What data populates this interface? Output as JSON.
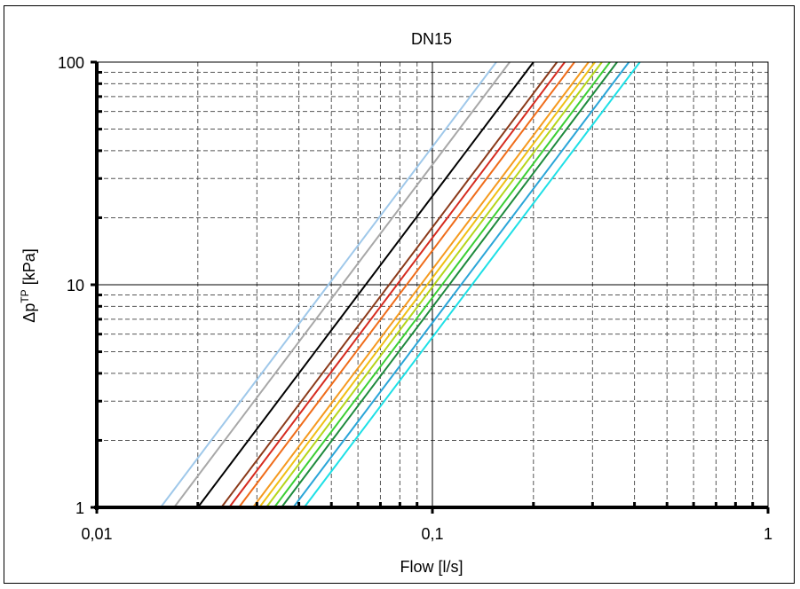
{
  "chart_data": {
    "type": "line",
    "title": "DN15",
    "xlabel": "Flow [l/s]",
    "ylabel_main": "Δp",
    "ylabel_sup": "TP",
    "ylabel_unit": " [kPa]",
    "x_scale": "log",
    "y_scale": "log",
    "xlim": [
      0.01,
      1
    ],
    "ylim": [
      1,
      100
    ],
    "x_ticks": [
      {
        "value": 0.01,
        "label": "0,01"
      },
      {
        "value": 0.1,
        "label": "0,1"
      },
      {
        "value": 1,
        "label": "1"
      }
    ],
    "y_ticks": [
      {
        "value": 1,
        "label": "1"
      },
      {
        "value": 10,
        "label": "10"
      },
      {
        "value": 100,
        "label": "100"
      }
    ],
    "grid": true,
    "legend": "none",
    "series": [
      {
        "color": "#9fc8ea",
        "x": [
          0.0155,
          0.155
        ],
        "y": [
          1,
          100
        ]
      },
      {
        "color": "#a8a8a8",
        "x": [
          0.017,
          0.17
        ],
        "y": [
          1,
          100
        ]
      },
      {
        "color": "#000000",
        "x": [
          0.02,
          0.2
        ],
        "y": [
          1,
          100
        ]
      },
      {
        "color": "#8b3a1a",
        "x": [
          0.0235,
          0.235
        ],
        "y": [
          1,
          100
        ]
      },
      {
        "color": "#d62b1f",
        "x": [
          0.0248,
          0.248
        ],
        "y": [
          1,
          100
        ]
      },
      {
        "color": "#ef6c1a",
        "x": [
          0.0265,
          0.265
        ],
        "y": [
          1,
          100
        ]
      },
      {
        "color": "#f59a1f",
        "x": [
          0.0292,
          0.292
        ],
        "y": [
          1,
          100
        ]
      },
      {
        "color": "#f0c015",
        "x": [
          0.0305,
          0.305
        ],
        "y": [
          1,
          100
        ]
      },
      {
        "color": "#b5d61b",
        "x": [
          0.032,
          0.32
        ],
        "y": [
          1,
          100
        ]
      },
      {
        "color": "#3ccf34",
        "x": [
          0.0338,
          0.338
        ],
        "y": [
          1,
          100
        ]
      },
      {
        "color": "#1e8a3c",
        "x": [
          0.0355,
          0.355
        ],
        "y": [
          1,
          100
        ]
      },
      {
        "color": "#2aa5d8",
        "x": [
          0.0385,
          0.385
        ],
        "y": [
          1,
          100
        ]
      },
      {
        "color": "#1ee0e6",
        "x": [
          0.0415,
          0.415
        ],
        "y": [
          1,
          100
        ]
      }
    ]
  }
}
